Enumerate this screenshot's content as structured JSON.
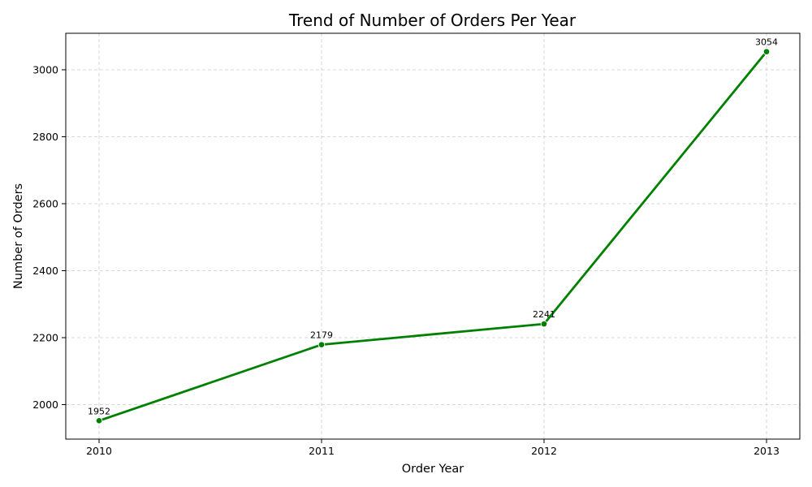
{
  "chart_data": {
    "type": "line",
    "title": "Trend of Number of Orders Per Year",
    "xlabel": "Order Year",
    "ylabel": "Number of Orders",
    "categories": [
      "2010",
      "2011",
      "2012",
      "2013"
    ],
    "series": [
      {
        "values": [
          1952,
          2179,
          2241,
          3054
        ],
        "color": "#008000"
      }
    ],
    "data_labels": [
      "1952",
      "2179",
      "2241",
      "3054"
    ],
    "yticks": [
      2000,
      2200,
      2400,
      2600,
      2800,
      3000
    ],
    "ylim": [
      1897,
      3109
    ],
    "grid": true,
    "line_color": "#008000"
  }
}
